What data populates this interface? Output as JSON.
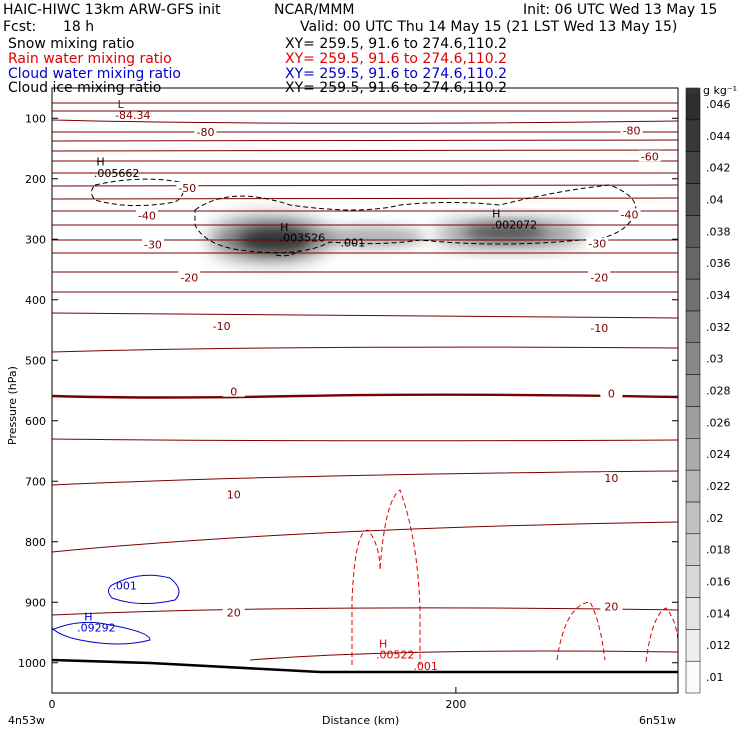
{
  "header": {
    "model_title": "HAIC-HIWC 13km ARW-GFS init",
    "center": "NCAR/MMM",
    "init_time": "Init: 06 UTC Wed 13 May 15",
    "fcst_label": "Fcst:",
    "fcst_value": "18 h",
    "valid_time": "Valid: 00 UTC Thu 14 May 15 (21 LST Wed 13 May 15)"
  },
  "fields": [
    {
      "name": "Snow mixing ratio",
      "xy": "XY= 259.5, 91.6 to 274.6,110.2",
      "color": "#000000"
    },
    {
      "name": "Rain water mixing ratio",
      "xy": "XY= 259.5, 91.6 to 274.6,110.2",
      "color": "#e00000"
    },
    {
      "name": "Cloud water mixing ratio",
      "xy": "XY= 259.5, 91.6 to 274.6,110.2",
      "color": "#0000cc"
    },
    {
      "name": "Cloud ice mixing ratio",
      "xy": "XY= 259.5, 91.6 to 274.6,110.2",
      "color": "#000000"
    }
  ],
  "chart_data": {
    "type": "heatmap",
    "xlabel": "Distance (km)",
    "ylabel": "Pressure (hPa)",
    "x_ticks": [
      0,
      200
    ],
    "y_ticks": [
      100,
      200,
      300,
      400,
      500,
      600,
      700,
      800,
      900,
      1000
    ],
    "xlim": [
      0,
      310
    ],
    "ylim": [
      1050,
      50
    ],
    "left_location": "4n53w",
    "right_location": "6n51w",
    "colorbar": {
      "units": "g kg⁻¹",
      "levels": [
        0.01,
        0.012,
        0.014,
        0.016,
        0.018,
        0.02,
        0.022,
        0.024,
        0.026,
        0.028,
        0.03,
        0.032,
        0.034,
        0.036,
        0.038,
        0.04,
        0.042,
        0.044,
        0.046
      ],
      "level_labels": [
        ".01",
        ".012",
        ".014",
        ".016",
        ".018",
        ".02",
        ".022",
        ".024",
        ".026",
        ".028",
        ".03",
        ".032",
        ".034",
        ".036",
        ".038",
        ".04",
        ".042",
        ".044",
        ".046"
      ]
    },
    "temperature_labels": [
      {
        "text": "-80",
        "x": 76,
        "p": 123
      },
      {
        "text": "-80",
        "x": 287,
        "p": 120
      },
      {
        "text": "-60",
        "x": 296,
        "p": 163
      },
      {
        "text": "-50",
        "x": 67,
        "p": 215
      },
      {
        "text": "-40",
        "x": 47,
        "p": 261
      },
      {
        "text": "-40",
        "x": 286,
        "p": 259
      },
      {
        "text": "-30",
        "x": 50,
        "p": 309
      },
      {
        "text": "-30",
        "x": 270,
        "p": 307
      },
      {
        "text": "-20",
        "x": 68,
        "p": 363
      },
      {
        "text": "-20",
        "x": 271,
        "p": 363
      },
      {
        "text": "-10",
        "x": 84,
        "p": 443
      },
      {
        "text": "-10",
        "x": 271,
        "p": 447
      },
      {
        "text": "0",
        "x": 90,
        "p": 552
      },
      {
        "text": "0",
        "x": 277,
        "p": 555
      },
      {
        "text": "10",
        "x": 90,
        "p": 722
      },
      {
        "text": "10",
        "x": 277,
        "p": 695
      },
      {
        "text": "20",
        "x": 90,
        "p": 917
      },
      {
        "text": "20",
        "x": 277,
        "p": 907
      }
    ],
    "annotations": [
      {
        "text": "L",
        "x": 34,
        "p": 83,
        "color": "#8b0000"
      },
      {
        "text": "-84.34",
        "x": 40,
        "p": 101,
        "color": "#8b0000"
      },
      {
        "text": "H",
        "x": 24,
        "p": 178,
        "color": "#000000"
      },
      {
        "text": ".005662",
        "x": 32,
        "p": 197,
        "color": "#000000"
      },
      {
        "text": "H",
        "x": 115,
        "p": 286,
        "color": "#000000"
      },
      {
        "text": ".003526",
        "x": 124,
        "p": 304,
        "color": "#000000"
      },
      {
        "text": ".001",
        "x": 149,
        "p": 312,
        "color": "#000000"
      },
      {
        "text": "H",
        "x": 220,
        "p": 264,
        "color": "#000000"
      },
      {
        "text": ".002072",
        "x": 229,
        "p": 282,
        "color": "#000000"
      },
      {
        "text": ".001",
        "x": 36,
        "p": 879,
        "color": "#0000cc"
      },
      {
        "text": "H",
        "x": 18,
        "p": 930,
        "color": "#0000cc"
      },
      {
        "text": ".09292",
        "x": 22,
        "p": 948,
        "color": "#0000cc"
      },
      {
        "text": "H",
        "x": 164,
        "p": 975,
        "color": "#e00000"
      },
      {
        "text": ".00522",
        "x": 170,
        "p": 993,
        "color": "#e00000"
      },
      {
        "text": ".001",
        "x": 185,
        "p": 1012,
        "color": "#e00000"
      }
    ]
  }
}
